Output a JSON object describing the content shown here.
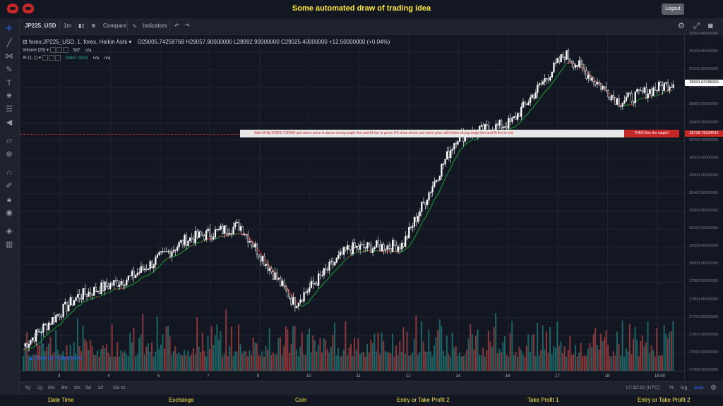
{
  "app_title": "Some automated draw of trading idea",
  "logout_label": "Logout",
  "toolbar": {
    "symbol": "JP225_USD",
    "interval": "1m",
    "compare_label": "Compare",
    "indicators_label": "Indicators"
  },
  "legend": {
    "main": "forex:JP225_USD, 1, forex, Heikin Ashi",
    "ohlc": "O29005.74258768  H29057.90000000  L28992.90000000  C29025.40000000  +12.50000000 (+0.04%)",
    "volume_name": "Volume (20)",
    "volume_value": "587",
    "volume_na": "n/a",
    "ai_name": "AI (1, 1)",
    "ai_value": "28967.3509",
    "ai_na1": "n/a",
    "ai_na2": "n/a"
  },
  "banner": {
    "text": "Wait till flip ENDS !   DRAW just when:  price is above strong angle line and AI line is green         OK         draw shorts just when price still below strong angle line and AI line is red",
    "red_text": "THEN See the magic!!",
    "price_label": "28738.78234042"
  },
  "last_price_label": "29031.03785000",
  "price_axis": [
    "29300.00000000",
    "29200.00000000",
    "29100.00000000",
    "29000.00000000",
    "28900.00000000",
    "28800.00000000",
    "28700.00000000",
    "28600.00000000",
    "28500.00000000",
    "28400.00000000",
    "28300.00000000",
    "28200.00000000",
    "28100.00000000",
    "28000.00000000",
    "27900.00000000",
    "27800.00000000",
    "27700.00000000",
    "27600.00000000",
    "27500.00000000",
    "27400.00000000"
  ],
  "time_axis": [
    "3",
    "4",
    "5",
    "7",
    "9",
    "10",
    "11",
    "12",
    "14",
    "16",
    "17",
    "18",
    "15:00"
  ],
  "watermark": "Chart by TradingView",
  "bottom": {
    "ranges": [
      "5y",
      "1y",
      "6m",
      "3m",
      "1m",
      "5d",
      "1d"
    ],
    "goto_label": "Go to...",
    "clock": "17:32:22 (UTC)",
    "percent_label": "%",
    "log_label": "log",
    "auto_label": "auto"
  },
  "footer": [
    "Date Time",
    "Exchange",
    "Coin",
    "Entry or Take Profit 2",
    "Take Profit 1",
    "Entry or Take Profit 2"
  ],
  "colors": {
    "up": "#26a69a",
    "down": "#ef5350",
    "candle": "#ffffff",
    "ai_up": "#1b8a2e",
    "ai_down": "#c62828",
    "accent": "#ffeb3b"
  },
  "chart_data": {
    "type": "line",
    "style": "heikin-ashi candles with volume and AI line",
    "ylim": [
      27400,
      29300
    ],
    "x": [
      "3",
      "4",
      "5",
      "7",
      "9",
      "10",
      "11",
      "12",
      "14",
      "16",
      "17",
      "18",
      "15:00"
    ],
    "series": [
      {
        "values": [
          27540,
          27820,
          27930,
          28140,
          28220,
          27780,
          28090,
          28110,
          28720,
          28800,
          29190,
          28920,
          29030
        ]
      }
    ]
  }
}
